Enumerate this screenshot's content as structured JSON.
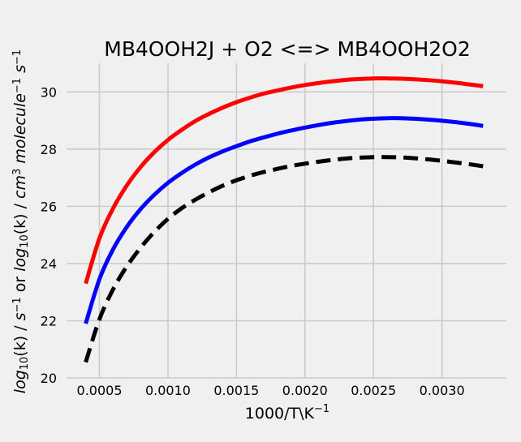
{
  "chart_data": {
    "type": "line",
    "title": "MB4OOH2J + O2 <=> MB4OOH2O2",
    "xlabel": {
      "base": "1000/T\\K",
      "sup": "−1"
    },
    "ylabel": {
      "parts": [
        {
          "t": "log",
          "style": "italic"
        },
        {
          "t": "10",
          "style": "sub"
        },
        {
          "t": "(k) / ",
          "style": "normal"
        },
        {
          "t": "s",
          "style": "italic"
        },
        {
          "t": "−1",
          "style": "sup"
        },
        {
          "t": " or ",
          "style": "normal"
        },
        {
          "t": "log",
          "style": "italic"
        },
        {
          "t": "10",
          "style": "sub"
        },
        {
          "t": "(k) / ",
          "style": "normal"
        },
        {
          "t": "cm",
          "style": "italic"
        },
        {
          "t": "3",
          "style": "sup"
        },
        {
          "t": " molecule",
          "style": "italic"
        },
        {
          "t": "−1",
          "style": "sup"
        },
        {
          "t": " s",
          "style": "italic"
        },
        {
          "t": "−1",
          "style": "sup"
        }
      ]
    },
    "xlim": [
      0.00026,
      0.00347
    ],
    "ylim": [
      20,
      31
    ],
    "x_ticks": [
      0.0005,
      0.001,
      0.0015,
      0.002,
      0.0025,
      0.003
    ],
    "x_tick_labels": [
      "0.0005",
      "0.0010",
      "0.0015",
      "0.0020",
      "0.0025",
      "0.0030"
    ],
    "y_ticks": [
      20,
      22,
      24,
      26,
      28,
      30
    ],
    "y_tick_labels": [
      "20",
      "22",
      "24",
      "26",
      "28",
      "30"
    ],
    "grid": true,
    "series": [
      {
        "color": "#ff0000",
        "dash": "solid",
        "x": [
          0.0004,
          0.0005,
          0.0006,
          0.0007,
          0.0008,
          0.0009,
          0.001,
          0.0011,
          0.0012,
          0.0013,
          0.0014,
          0.0015,
          0.0016,
          0.0017,
          0.0018,
          0.0019,
          0.002,
          0.0021,
          0.0022,
          0.0023,
          0.0024,
          0.0025,
          0.0026,
          0.0027,
          0.0028,
          0.0029,
          0.003,
          0.0031,
          0.0032,
          0.0033
        ],
        "y": [
          23.3,
          24.88,
          25.93,
          26.73,
          27.37,
          27.89,
          28.32,
          28.67,
          28.98,
          29.23,
          29.45,
          29.64,
          29.8,
          29.94,
          30.05,
          30.15,
          30.24,
          30.31,
          30.37,
          30.42,
          30.45,
          30.47,
          30.47,
          30.46,
          30.44,
          30.41,
          30.37,
          30.32,
          30.26,
          30.2
        ]
      },
      {
        "color": "#0000ff",
        "dash": "solid",
        "x": [
          0.0004,
          0.0005,
          0.0006,
          0.0007,
          0.0008,
          0.0009,
          0.001,
          0.0011,
          0.0012,
          0.0013,
          0.0014,
          0.0015,
          0.0016,
          0.0017,
          0.0018,
          0.0019,
          0.002,
          0.0021,
          0.0022,
          0.0023,
          0.0024,
          0.0025,
          0.0026,
          0.0027,
          0.0028,
          0.0029,
          0.003,
          0.0031,
          0.0032,
          0.0033
        ],
        "y": [
          21.9,
          23.45,
          24.5,
          25.28,
          25.9,
          26.4,
          26.82,
          27.16,
          27.46,
          27.71,
          27.92,
          28.1,
          28.27,
          28.41,
          28.54,
          28.65,
          28.75,
          28.84,
          28.92,
          28.98,
          29.03,
          29.06,
          29.08,
          29.08,
          29.06,
          29.03,
          28.99,
          28.94,
          28.88,
          28.81
        ]
      },
      {
        "color": "#000000",
        "dash": "dashed",
        "x": [
          0.0004,
          0.0005,
          0.0006,
          0.0007,
          0.0008,
          0.0009,
          0.001,
          0.0011,
          0.0012,
          0.0013,
          0.0014,
          0.0015,
          0.0016,
          0.0017,
          0.0018,
          0.0019,
          0.002,
          0.0021,
          0.0022,
          0.0023,
          0.0024,
          0.0025,
          0.0026,
          0.0027,
          0.0028,
          0.0029,
          0.003,
          0.0031,
          0.0032,
          0.0033
        ],
        "y": [
          20.55,
          22.05,
          23.1,
          23.9,
          24.55,
          25.1,
          25.56,
          25.93,
          26.23,
          26.49,
          26.72,
          26.91,
          27.07,
          27.2,
          27.31,
          27.41,
          27.49,
          27.56,
          27.62,
          27.67,
          27.7,
          27.72,
          27.72,
          27.71,
          27.68,
          27.64,
          27.59,
          27.53,
          27.47,
          27.4
        ]
      }
    ]
  }
}
